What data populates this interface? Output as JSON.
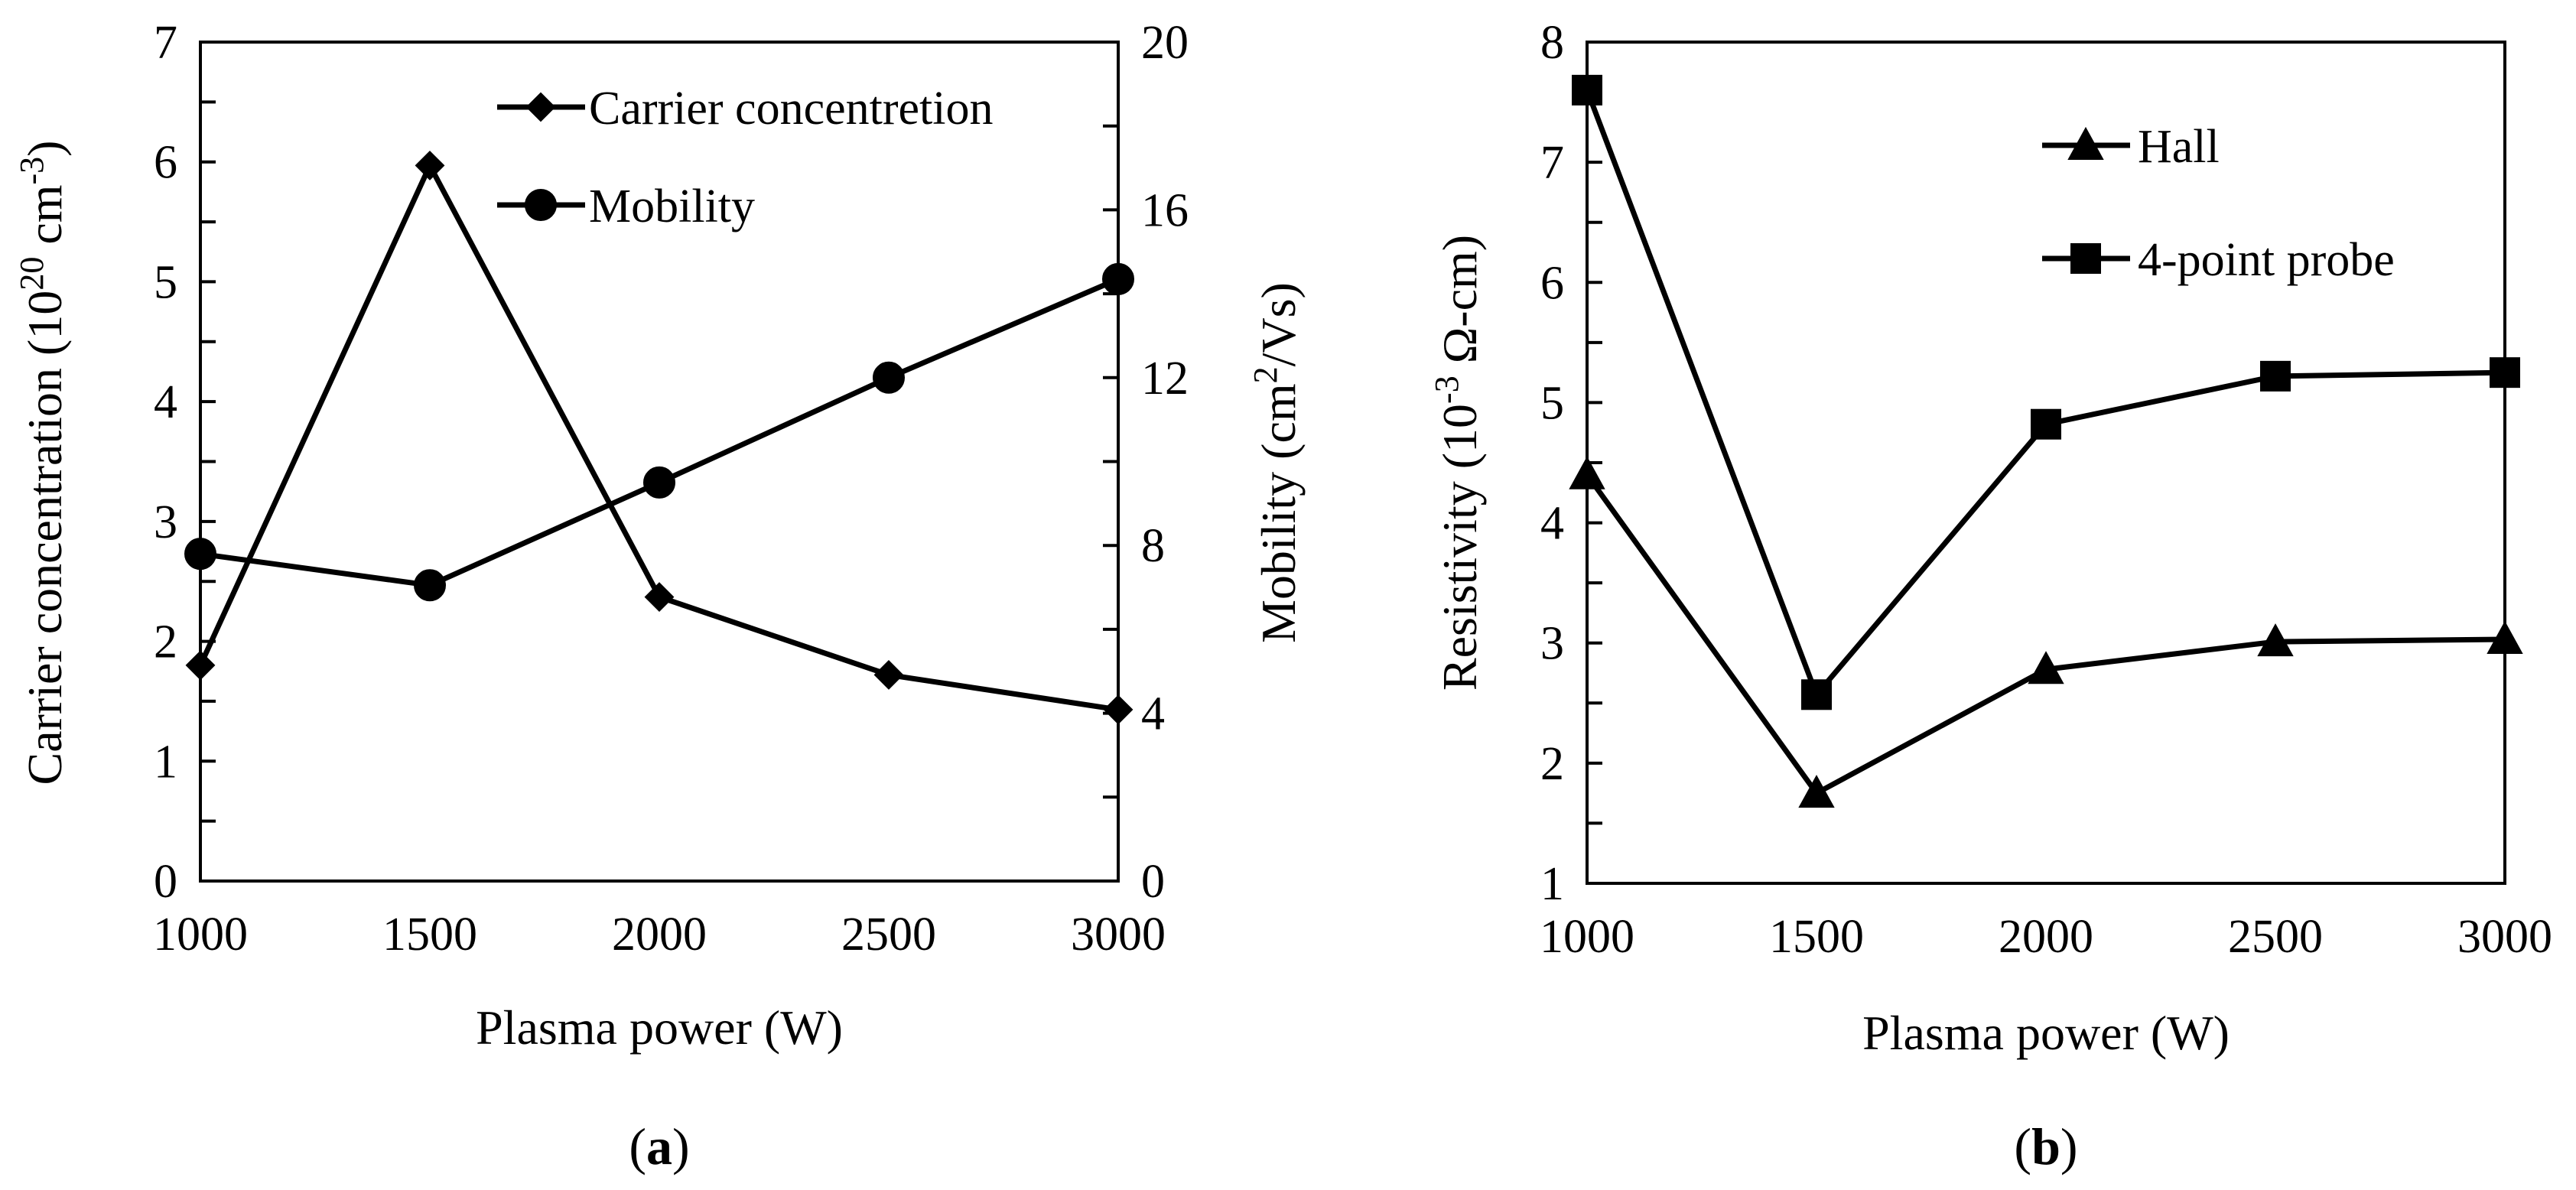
{
  "chart_data": [
    {
      "type": "line",
      "panel_label": "a",
      "x": [
        1000,
        1500,
        2000,
        2500,
        3000
      ],
      "xticks": [
        "1000",
        "1500",
        "2000",
        "2500",
        "3000"
      ],
      "xlim": [
        1000,
        3000
      ],
      "xlabel": "Plasma power (W)",
      "ylabel_left": {
        "pre": "Carrier concentration (10",
        "sup1": "20",
        "mid": " cm",
        "sup2": "-3",
        "post": ")"
      },
      "ylabel_right": {
        "pre": "Mobility (cm",
        "sup1": "2",
        "post": "/Vs)"
      },
      "ylim_left": [
        0,
        7
      ],
      "yticks_left": [
        "0",
        "1",
        "2",
        "3",
        "4",
        "5",
        "6",
        "7"
      ],
      "ylim_right": [
        0,
        20
      ],
      "yticks_right": [
        "0",
        "4",
        "8",
        "12",
        "16",
        "20"
      ],
      "legend_position": "top-right",
      "series": [
        {
          "name": "Carrier concentretion",
          "axis": "left",
          "marker": "diamond",
          "values": [
            1.8,
            5.97,
            2.37,
            1.72,
            1.43
          ]
        },
        {
          "name": "Mobility",
          "axis": "right",
          "marker": "circle",
          "values": [
            7.8,
            7.05,
            9.5,
            12.0,
            14.35
          ]
        }
      ]
    },
    {
      "type": "line",
      "panel_label": "b",
      "x": [
        1000,
        1500,
        2000,
        2500,
        3000
      ],
      "xticks": [
        "1000",
        "1500",
        "2000",
        "2500",
        "3000"
      ],
      "xlim": [
        1000,
        3000
      ],
      "xlabel": "Plasma power (W)",
      "ylabel_left": {
        "pre": "Resistivity (10",
        "sup1": "-3",
        "post": " Ω-cm)"
      },
      "ylim_left": [
        1,
        8
      ],
      "yticks_left": [
        "1",
        "2",
        "3",
        "4",
        "5",
        "6",
        "7",
        "8"
      ],
      "legend_position": "top-right",
      "series": [
        {
          "name": "Hall",
          "axis": "left",
          "marker": "triangle",
          "values": [
            4.4,
            1.75,
            2.78,
            3.01,
            3.03
          ]
        },
        {
          "name": "4-point probe",
          "axis": "left",
          "marker": "square",
          "values": [
            7.6,
            2.57,
            4.82,
            5.22,
            5.25
          ]
        }
      ]
    }
  ]
}
